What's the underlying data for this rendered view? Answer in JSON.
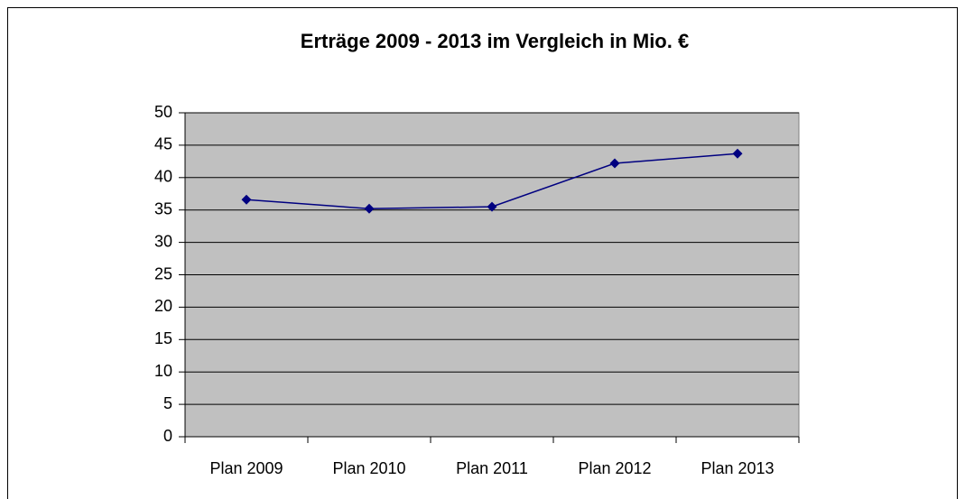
{
  "chart_data": {
    "type": "line",
    "title": "Erträge 2009 - 2013 im Vergleich in Mio. €",
    "categories": [
      "Plan 2009",
      "Plan 2010",
      "Plan 2011",
      "Plan 2012",
      "Plan 2013"
    ],
    "series": [
      {
        "name": "Erträge",
        "color": "#000080",
        "values": [
          36.6,
          35.2,
          35.5,
          42.2,
          43.7
        ]
      }
    ],
    "ylim": [
      0,
      50
    ],
    "yticks": [
      0,
      5,
      10,
      15,
      20,
      25,
      30,
      35,
      40,
      45,
      50
    ],
    "grid": true,
    "plot_background": "#c0c0c0"
  }
}
